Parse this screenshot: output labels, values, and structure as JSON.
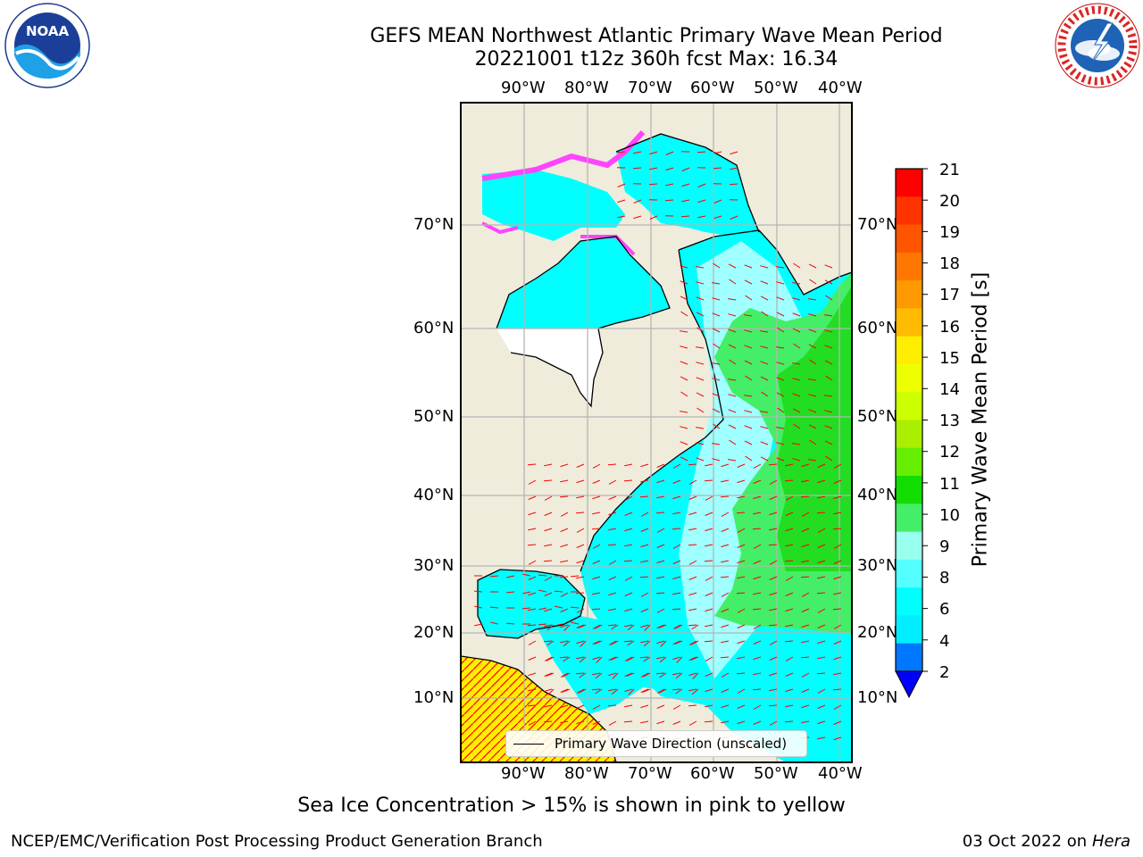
{
  "header": {
    "title_line1": "GEFS MEAN Northwest Atlantic Primary Wave Mean Period",
    "title_line2": "20221001 t12z 360h fcst   Max: 16.34"
  },
  "logos": {
    "left": {
      "name": "NOAA",
      "icon": "noaa-logo"
    },
    "right": {
      "name": "NATIONAL WEATHER SERVICE",
      "icon": "nws-logo"
    }
  },
  "map": {
    "lon_ticks_top": [
      "90°W",
      "80°W",
      "70°W",
      "60°W",
      "50°W",
      "40°W"
    ],
    "lon_ticks_bottom": [
      "90°W",
      "80°W",
      "70°W",
      "60°W",
      "50°W",
      "40°W"
    ],
    "lat_ticks_left": [
      "70°N",
      "60°N",
      "50°N",
      "40°N",
      "30°N",
      "20°N",
      "10°N"
    ],
    "lat_ticks_right": [
      "70°N",
      "60°N",
      "50°N",
      "40°N",
      "30°N",
      "20°N",
      "10°N"
    ],
    "legend_label": "Primary Wave Direction (unscaled)",
    "colors": {
      "land": "#efecdc",
      "ocean_low": "#00ffff",
      "ocean_mid": "#a0ffff",
      "ocean_high": "#30ee30",
      "ice": "#ff44ff",
      "arrows": "#ff0000"
    }
  },
  "colorbar": {
    "title": "Primary Wave Mean Period [s]",
    "ticks": [
      "21",
      "20",
      "19",
      "18",
      "17",
      "16",
      "15",
      "14",
      "13",
      "12",
      "11",
      "10",
      "9",
      "8",
      "6",
      "4",
      "2"
    ],
    "colors_top_to_bottom": [
      "#ff0000",
      "#ff3300",
      "#ff5500",
      "#ff7700",
      "#ff9900",
      "#ffbb00",
      "#ffee00",
      "#eeff00",
      "#ccff00",
      "#aaee00",
      "#66ee00",
      "#11dd00",
      "#44ee66",
      "#99ffee",
      "#55ffff",
      "#00ffff",
      "#00eeff",
      "#0077ff"
    ],
    "extend_color": "#0000ff"
  },
  "footer": {
    "note": "Sea Ice Concentration > 15% is shown in pink to yellow",
    "left": "NCEP/EMC/Verification Post Processing Product Generation Branch",
    "date": "03 Oct 2022 on ",
    "machine": "Hera"
  }
}
